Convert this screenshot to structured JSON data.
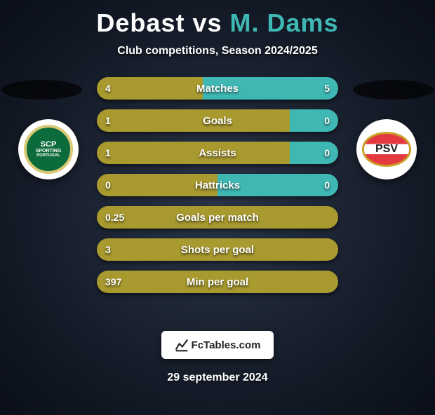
{
  "title": {
    "player1": "Debast",
    "vs": "vs",
    "player2": "M. Dams"
  },
  "subtitle": "Club competitions, Season 2024/2025",
  "colors": {
    "player1": "#a89a2f",
    "player2": "#3fb7b3",
    "title_p1": "#ffffff",
    "title_p2": "#3fb7b3"
  },
  "crest_left": {
    "name": "sporting-cp",
    "text_top": "SCP",
    "text_mid": "SPORTING",
    "text_bot": "PORTUGAL"
  },
  "crest_right": {
    "name": "psv",
    "text": "PSV"
  },
  "stats": [
    {
      "label": "Matches",
      "left_val": "4",
      "right_val": "5",
      "left_pct": 44,
      "right_pct": 56
    },
    {
      "label": "Goals",
      "left_val": "1",
      "right_val": "0",
      "left_pct": 80,
      "right_pct": 20
    },
    {
      "label": "Assists",
      "left_val": "1",
      "right_val": "0",
      "left_pct": 80,
      "right_pct": 20
    },
    {
      "label": "Hattricks",
      "left_val": "0",
      "right_val": "0",
      "left_pct": 50,
      "right_pct": 50
    },
    {
      "label": "Goals per match",
      "left_val": "0.25",
      "right_val": "",
      "left_pct": 100,
      "right_pct": 0
    },
    {
      "label": "Shots per goal",
      "left_val": "3",
      "right_val": "",
      "left_pct": 100,
      "right_pct": 0
    },
    {
      "label": "Min per goal",
      "left_val": "397",
      "right_val": "",
      "left_pct": 100,
      "right_pct": 0
    }
  ],
  "footer_logo": "FcTables.com",
  "date": "29 september 2024"
}
